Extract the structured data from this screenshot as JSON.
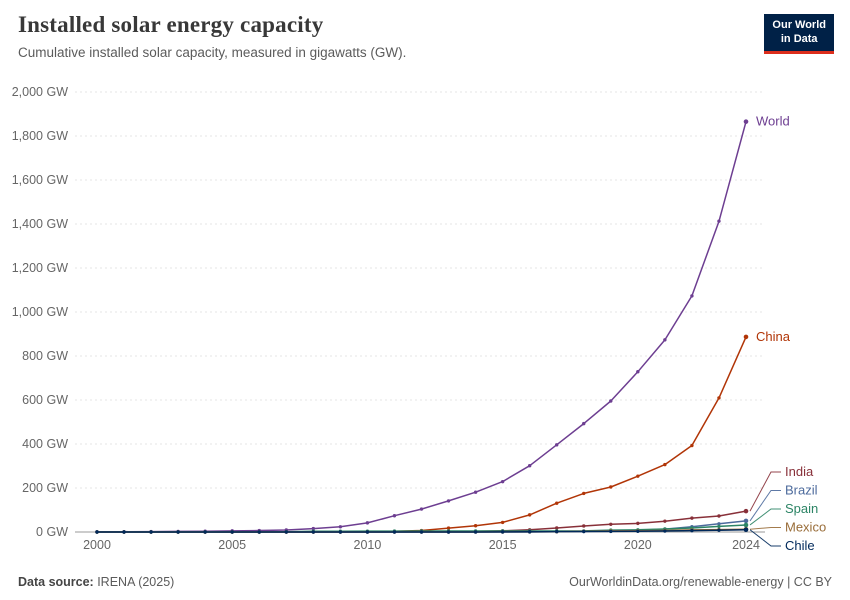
{
  "header": {
    "title": "Installed solar energy capacity",
    "subtitle": "Cumulative installed solar capacity, measured in gigawatts (GW).",
    "logo_line1": "Our World",
    "logo_line2": "in Data"
  },
  "footer": {
    "source_label": "Data source:",
    "source_text": " IRENA (2025)",
    "right_text": "OurWorldinData.org/renewable-energy | CC BY"
  },
  "chart_data": {
    "type": "line",
    "title": "Installed solar energy capacity",
    "ylabel": "",
    "xlabel": "",
    "unit_suffix": " GW",
    "ylim": [
      0,
      2000
    ],
    "yticks": [
      0,
      200,
      400,
      600,
      800,
      1000,
      1200,
      1400,
      1600,
      1800,
      2000
    ],
    "ytick_labels": [
      "0 GW",
      "200 GW",
      "400 GW",
      "600 GW",
      "800 GW",
      "1,000 GW",
      "1,200 GW",
      "1,400 GW",
      "1,600 GW",
      "1,800 GW",
      "2,000 GW"
    ],
    "xticks": [
      2000,
      2005,
      2010,
      2015,
      2020,
      2024
    ],
    "xtick_labels": [
      "2000",
      "2005",
      "2010",
      "2015",
      "2020",
      "2024"
    ],
    "grid": "dashed-horizontal",
    "legend_position": "right-end-labels",
    "x": [
      2000,
      2001,
      2002,
      2003,
      2004,
      2005,
      2006,
      2007,
      2008,
      2009,
      2010,
      2011,
      2012,
      2013,
      2014,
      2015,
      2016,
      2017,
      2018,
      2019,
      2020,
      2021,
      2022,
      2023,
      2024
    ],
    "series": [
      {
        "name": "World",
        "color": "#6d3e91",
        "values": [
          1.2,
          1.5,
          1.9,
          2.6,
          3.7,
          5.1,
          6.7,
          9.2,
          15.5,
          23.6,
          41.5,
          73.9,
          104.3,
          141.4,
          180.8,
          228.9,
          301.2,
          396.3,
          492.6,
          595.5,
          728.4,
          873.4,
          1073.1,
          1412.9,
          1865.1
        ]
      },
      {
        "name": "China",
        "color": "#b13507",
        "values": [
          0.03,
          0.05,
          0.06,
          0.07,
          0.08,
          0.08,
          0.09,
          0.1,
          0.15,
          0.3,
          1.0,
          3.1,
          6.7,
          17.8,
          28.4,
          43.5,
          77.8,
          130.8,
          175.3,
          204.7,
          253.8,
          306.4,
          393.0,
          609.5,
          886.7
        ]
      },
      {
        "name": "India",
        "color": "#883039",
        "values": [
          0.01,
          0.01,
          0.02,
          0.02,
          0.03,
          0.03,
          0.03,
          0.04,
          0.06,
          0.1,
          0.16,
          0.5,
          1.2,
          2.3,
          3.1,
          5.6,
          9.9,
          18.2,
          27.4,
          35.1,
          39.2,
          49.3,
          63.1,
          72.7,
          94.9
        ]
      },
      {
        "name": "Brazil",
        "color": "#4c6a9c",
        "values": [
          0,
          0,
          0,
          0,
          0,
          0,
          0,
          0,
          0,
          0,
          0.01,
          0.01,
          0.01,
          0.02,
          0.02,
          0.04,
          0.1,
          1.1,
          2.5,
          4.6,
          7.9,
          13.1,
          24.1,
          37.4,
          50.4
        ]
      },
      {
        "name": "Spain",
        "color": "#2c8465",
        "values": [
          0.01,
          0.01,
          0.02,
          0.03,
          0.06,
          0.1,
          0.15,
          0.7,
          3.4,
          3.5,
          3.9,
          4.3,
          4.6,
          4.7,
          4.7,
          4.7,
          4.7,
          4.7,
          4.8,
          8.8,
          10.1,
          13.7,
          18.3,
          25.5,
          32.0
        ]
      },
      {
        "name": "Mexico",
        "color": "#996d39",
        "values": [
          0.01,
          0.02,
          0.02,
          0.02,
          0.03,
          0.03,
          0.04,
          0.04,
          0.05,
          0.06,
          0.06,
          0.07,
          0.08,
          0.11,
          0.17,
          0.28,
          0.54,
          1.0,
          3.2,
          5.1,
          5.6,
          7.0,
          9.5,
          11.1,
          12.6
        ]
      },
      {
        "name": "Chile",
        "color": "#00295b",
        "values": [
          0,
          0,
          0,
          0,
          0,
          0,
          0,
          0,
          0,
          0,
          0,
          0,
          0.01,
          0.01,
          0.22,
          0.58,
          1.1,
          1.8,
          2.1,
          2.65,
          3.2,
          4.4,
          6.2,
          8.4,
          10.4
        ]
      }
    ]
  }
}
